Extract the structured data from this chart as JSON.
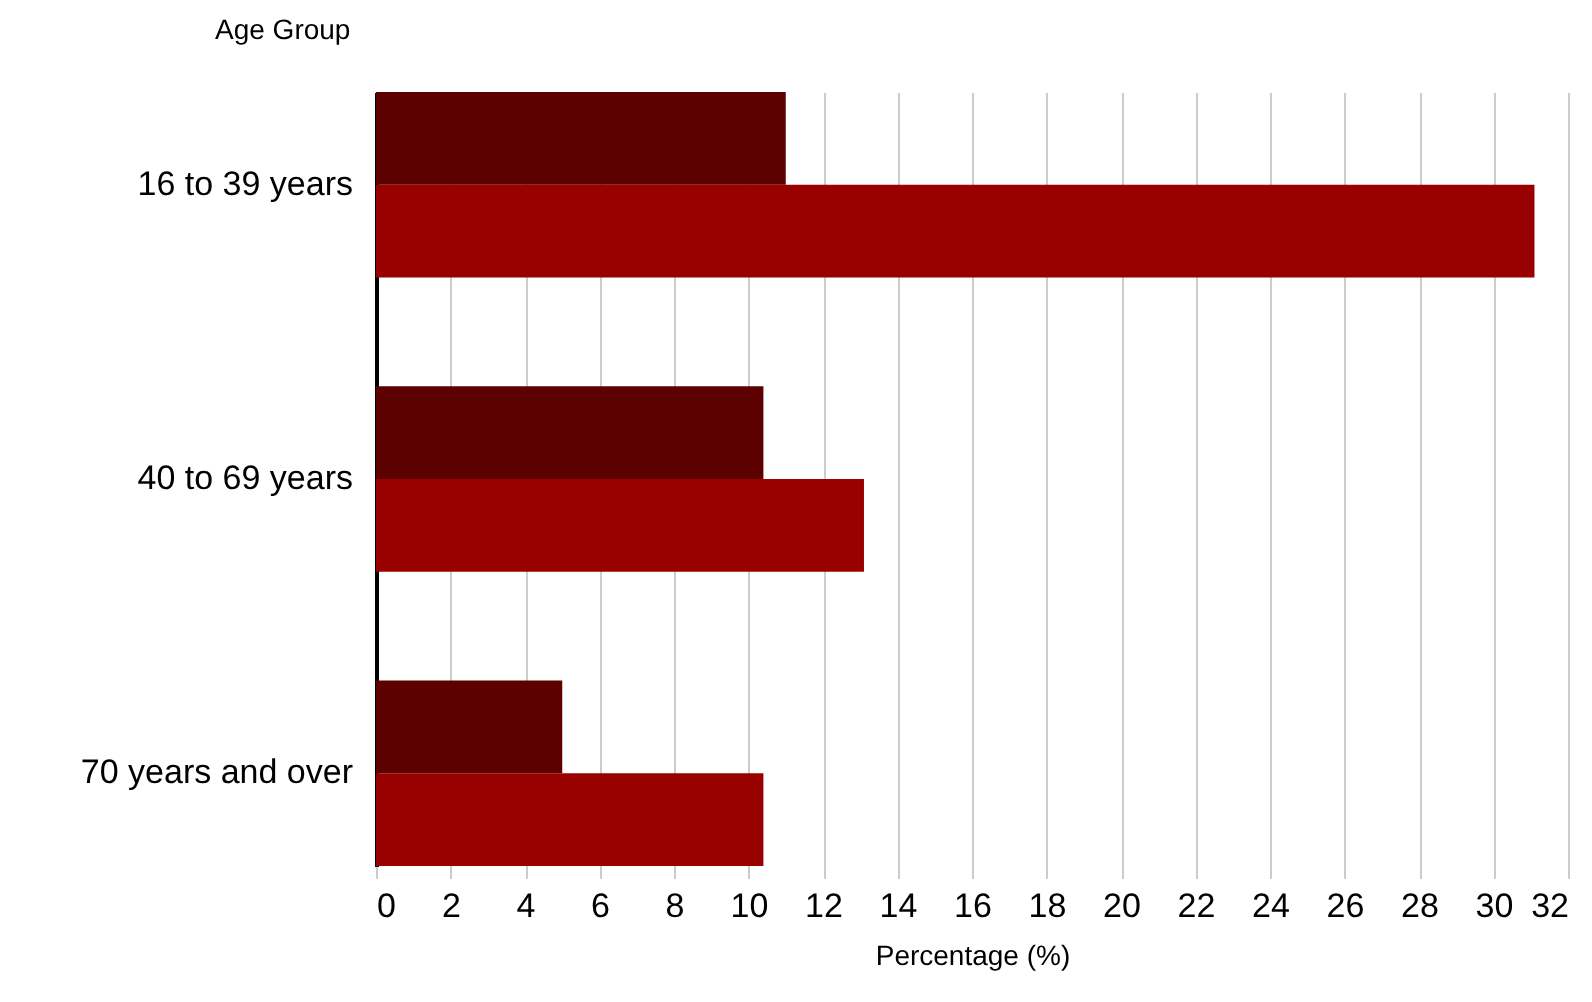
{
  "chart_data": {
    "type": "bar",
    "orientation": "horizontal",
    "ylabel": "Age Group",
    "xlabel": "Percentage (%)",
    "categories": [
      "16 to 39 years",
      "40 to 69 years",
      "70 years and over"
    ],
    "series": [
      {
        "color": "#5c0000",
        "values": [
          11.0,
          10.4,
          5.0
        ]
      },
      {
        "color": "#990000",
        "values": [
          31.1,
          13.1,
          10.4
        ]
      }
    ],
    "xlim": [
      0,
      32
    ],
    "xticks": [
      0,
      2,
      4,
      6,
      8,
      10,
      12,
      14,
      16,
      18,
      20,
      22,
      24,
      26,
      28,
      30,
      32
    ],
    "grid": "x"
  }
}
